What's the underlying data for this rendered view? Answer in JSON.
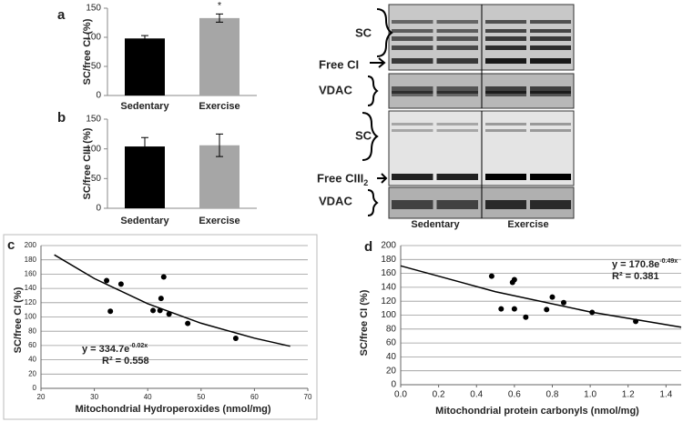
{
  "chart_data": [
    {
      "type": "bar",
      "panel": "a",
      "ylabel": "SC/free CI (%)",
      "categories": [
        "Sedentary",
        "Exercise"
      ],
      "values": [
        98,
        133
      ],
      "errors": [
        5,
        7
      ],
      "colors": [
        "#000000",
        "#a6a6a6"
      ],
      "annotations": [
        null,
        "*"
      ],
      "ylim": [
        0,
        150
      ],
      "yticks": [
        0,
        50,
        100,
        150
      ]
    },
    {
      "type": "bar",
      "panel": "b",
      "ylabel": "SC/free CIII (%)",
      "categories": [
        "Sedentary",
        "Exercise"
      ],
      "values": [
        104,
        106
      ],
      "errors": [
        15,
        19
      ],
      "colors": [
        "#000000",
        "#a6a6a6"
      ],
      "ylim": [
        0,
        150
      ],
      "yticks": [
        0,
        50,
        100,
        150
      ]
    },
    {
      "type": "scatter",
      "panel": "c",
      "xlabel": "Mitochondrial Hydroperoxides (nmol/mg)",
      "ylabel": "SC/free CI (%)",
      "color": "#000000",
      "x": [
        32.3,
        33,
        35,
        41,
        42.3,
        42.5,
        43,
        44,
        47.5,
        56.5
      ],
      "values": [
        151,
        108,
        146,
        109,
        109,
        126,
        156,
        104,
        91,
        70
      ],
      "trend": {
        "x": [
          22.5,
          30,
          40,
          50,
          60,
          66.7
        ],
        "values": [
          187,
          153.8,
          118.5,
          91.2,
          70.3,
          59
        ]
      },
      "equation": "y = 334.7e",
      "equation_exponent": "-0.02x",
      "r2": "R² = 0.558",
      "xlim": [
        20,
        70
      ],
      "xticks": [
        20,
        30,
        40,
        50,
        60,
        70
      ],
      "ylim": [
        0,
        200
      ],
      "yticks": [
        0,
        20,
        40,
        60,
        80,
        100,
        120,
        140,
        160,
        180,
        200
      ],
      "grid": true
    },
    {
      "type": "scatter",
      "panel": "d",
      "xlabel": "Mitochondrial protein carbonyls (nmol/mg)",
      "ylabel": "SC/free CI (%)",
      "color": "#000000",
      "x": [
        0.48,
        0.53,
        0.59,
        0.6,
        0.6,
        0.66,
        0.77,
        0.8,
        0.86,
        1.01,
        1.24
      ],
      "values": [
        156,
        109,
        147,
        151,
        109,
        97,
        108,
        126,
        118,
        104,
        91
      ],
      "trend": {
        "x": [
          0,
          0.5,
          1,
          1.48
        ],
        "values": [
          170.8,
          133.7,
          104.6,
          82.7
        ]
      },
      "equation": "y = 170.8e",
      "equation_exponent": "-0.49x",
      "r2": "R² = 0.381",
      "xlim": [
        0,
        1.48
      ],
      "xticks": [
        {
          "value": 0,
          "label": "0.0"
        },
        0.2,
        0.4,
        0.6,
        0.8,
        {
          "value": 1,
          "label": "1.0"
        },
        1.2,
        1.4
      ],
      "ylim": [
        0,
        200
      ],
      "yticks": [
        0,
        20,
        40,
        60,
        80,
        100,
        120,
        140,
        160,
        180,
        200
      ],
      "grid": true
    }
  ],
  "blots": {
    "labels": [
      {
        "text": "SC"
      },
      {
        "text": "Free CI"
      },
      {
        "text": "VDAC"
      },
      {
        "text": "SC"
      },
      {
        "text": "Free CIII",
        "sub": "2"
      },
      {
        "text": "VDAC"
      }
    ],
    "columns": [
      "Sedentary",
      "Exercise"
    ]
  }
}
